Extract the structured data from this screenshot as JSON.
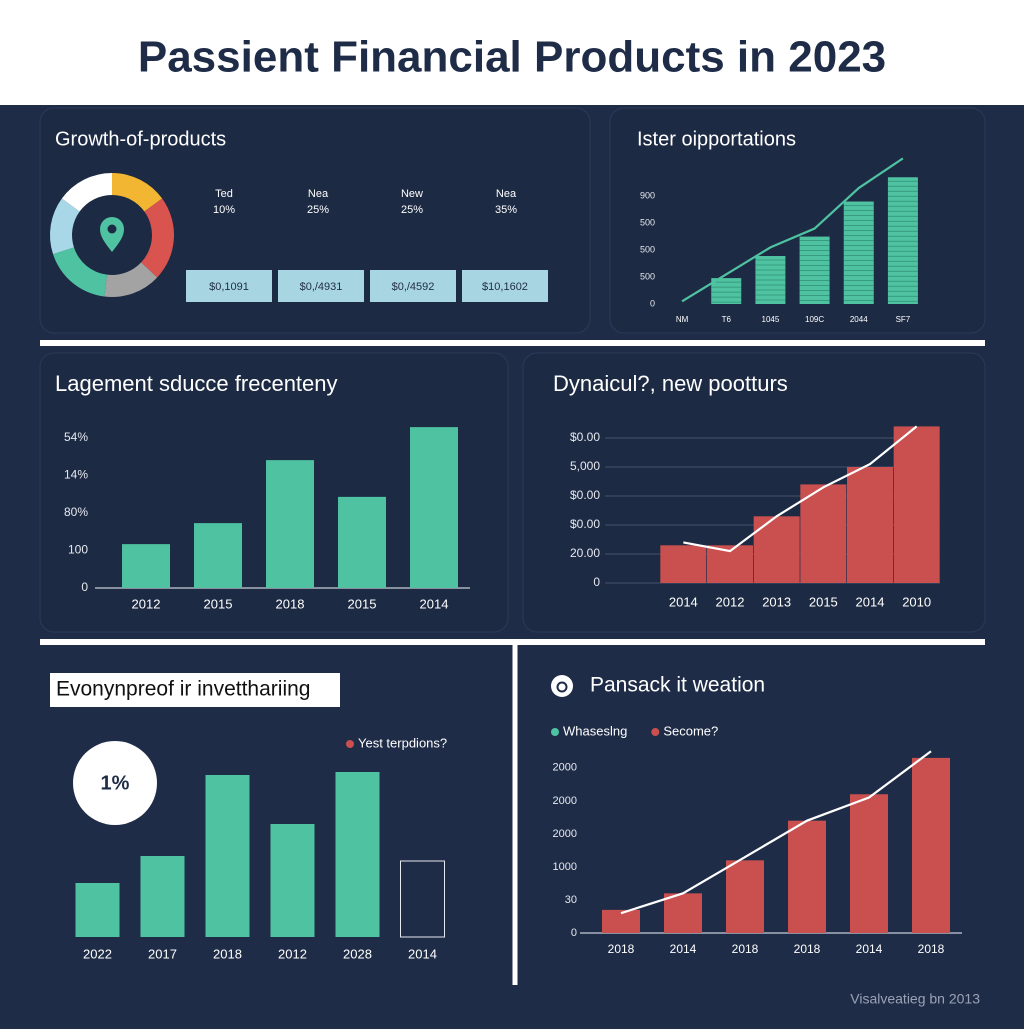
{
  "title": "Passient Financial Products in  2023",
  "footer": "Visalveatieg bn 2013",
  "growth": {
    "title": "Growth-of-products",
    "donut": {
      "values": [
        15,
        22,
        15,
        18,
        15,
        15
      ],
      "colors": [
        "#f2b632",
        "#d9534f",
        "#a3a3a3",
        "#4fc3a1",
        "#a8d8e8",
        "#ffffff"
      ]
    },
    "stats": [
      {
        "label": "Ted",
        "value": "10%"
      },
      {
        "label": "Nea",
        "value": "25%"
      },
      {
        "label": "New",
        "value": "25%"
      },
      {
        "label": "Nea",
        "value": "35%"
      }
    ],
    "tiles": [
      "$0,1091",
      "$0,/4931",
      "$0,/4592",
      "$10,1602"
    ]
  },
  "chart_data": [
    {
      "type": "bar",
      "title": "Ister oipportations",
      "categories": [
        "NM",
        "T6",
        "1045",
        "109C",
        "2044",
        "SF7"
      ],
      "series": [
        {
          "color": "#4fc3a1",
          "values": [
            null,
            0.96,
            1.78,
            2.5,
            3.8,
            4.7
          ]
        },
        {
          "kind": "line",
          "color": "#4fc3a1",
          "values": [
            0.1,
            1.1,
            2.1,
            2.8,
            4.3,
            5.4
          ]
        }
      ],
      "ylim": [
        0,
        5.6
      ],
      "yticks": [
        0,
        {
          "value": 1,
          "label": "500"
        },
        {
          "value": 2,
          "label": "500"
        },
        {
          "value": 3,
          "label": "500"
        },
        {
          "value": 4,
          "label": "900"
        }
      ],
      "grid": false
    },
    {
      "type": "bar",
      "title": "Lagement sducce frecenteny",
      "categories": [
        "2012",
        "2015",
        "2018",
        "2015",
        "2014"
      ],
      "series": [
        {
          "color": "#4fc3a1",
          "values": [
            1.17,
            1.73,
            3.41,
            2.43,
            4.29
          ]
        }
      ],
      "ylim": [
        0,
        4.4
      ],
      "yticks": [
        0,
        {
          "value": 1,
          "label": "100"
        },
        {
          "value": 2,
          "label": "80%"
        },
        {
          "value": 3,
          "label": "14%"
        },
        {
          "value": 4,
          "label": "54%"
        }
      ],
      "grid": false
    },
    {
      "type": "bar",
      "title": "Dynaicul?, new pootturs",
      "categories": [
        "2014",
        "2012",
        "2013",
        "2015",
        "2014",
        "2010"
      ],
      "series": [
        {
          "color": "#c9504f",
          "values": [
            1.3,
            1.3,
            2.3,
            3.4,
            4.0,
            5.4
          ]
        },
        {
          "kind": "line",
          "color": "#ffffff",
          "values": [
            1.4,
            1.1,
            2.3,
            3.3,
            4.1,
            5.4
          ]
        }
      ],
      "ylim": [
        0,
        5.5
      ],
      "yticks": [
        0,
        {
          "value": 1,
          "label": "20.00"
        },
        {
          "value": 2,
          "label": "$0.00"
        },
        {
          "value": 3,
          "label": "$0.00"
        },
        {
          "value": 4,
          "label": "5,000"
        },
        {
          "value": 5,
          "label": "$0.00"
        }
      ],
      "grid": true
    },
    {
      "type": "bar",
      "title": "Evonynpreof ir invetthariing",
      "badge": "1%",
      "categories": [
        "2022",
        "2017",
        "2018",
        "2012",
        "2028",
        "2014"
      ],
      "series": [
        {
          "name": "Yest terpdions?",
          "color": "#c9504f",
          "bar_colors": [
            "#4fc3a1",
            "#4fc3a1",
            "#4fc3a1",
            "#4fc3a1",
            "#4fc3a1",
            "none"
          ],
          "values": [
            54,
            81,
            162,
            113,
            165,
            76
          ]
        }
      ],
      "legend": "top-right"
    },
    {
      "type": "bar",
      "title": "Pansack it weation",
      "categories": [
        "2018",
        "2014",
        "2018",
        "2018",
        "2014",
        "2018"
      ],
      "series": [
        {
          "name": "Secome?",
          "color": "#c9504f",
          "values": [
            0.7,
            1.2,
            2.2,
            3.4,
            4.2,
            5.3
          ]
        },
        {
          "kind": "line",
          "name": "Whaseslng",
          "color": "#4fc3a1",
          "values": [
            0.6,
            1.2,
            2.3,
            3.4,
            4.1,
            5.5
          ]
        }
      ],
      "ylim": [
        0,
        5.6
      ],
      "yticks": [
        0,
        {
          "value": 1,
          "label": "30"
        },
        {
          "value": 2,
          "label": "1000"
        },
        {
          "value": 3,
          "label": "2000"
        },
        {
          "value": 4,
          "label": "2000"
        },
        {
          "value": 5,
          "label": "2000"
        }
      ],
      "legend": "top-left"
    }
  ]
}
